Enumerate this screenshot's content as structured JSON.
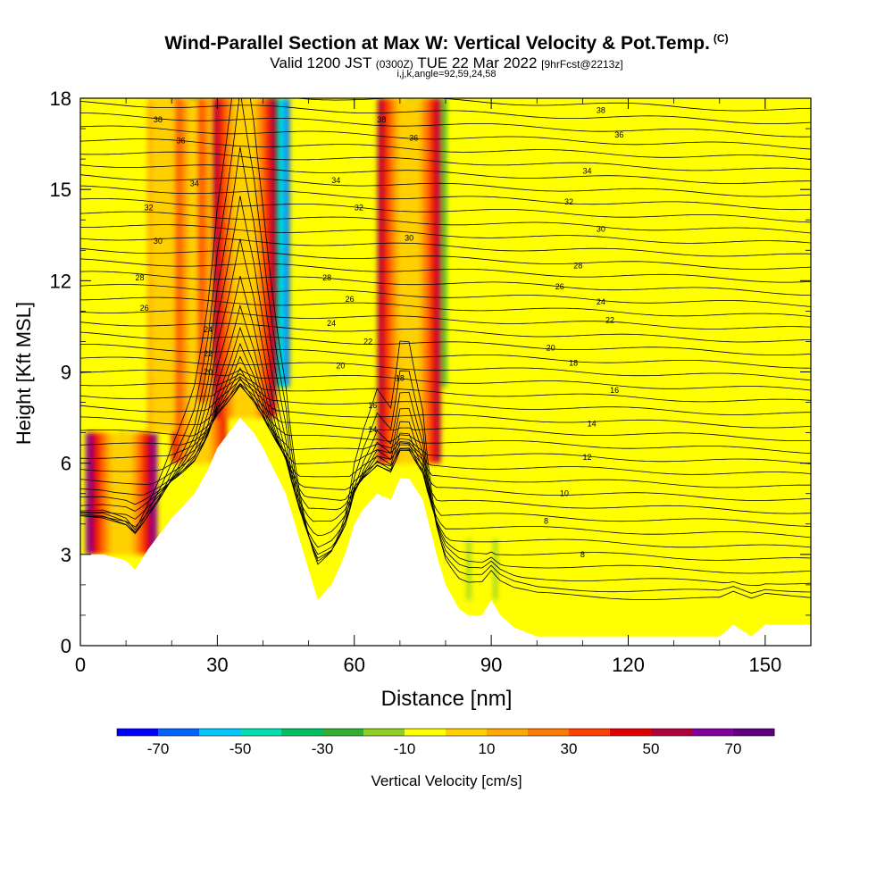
{
  "title": "Wind-Parallel Section at Max W: Vertical Velocity & Pot.Temp.",
  "copyright": "(C)",
  "subtitle_valid": "Valid 1200 JST",
  "subtitle_utc": "(0300Z)",
  "subtitle_date": "TUE 22 Mar 2022",
  "subtitle_fcst": "[9hrFcst@2213z]",
  "params": "i,j,k,angle=92,59,24,58",
  "colors": {
    "terrain": "#ffffff",
    "background": "#ffff00",
    "contour": "#000000"
  },
  "chart_data": {
    "type": "heatmap",
    "title": "Wind-Parallel Section at Max W: Vertical Velocity & Pot.Temp.",
    "xlabel": "Distance [nm]",
    "ylabel": "Height [Kft MSL]",
    "xlim": [
      0,
      160
    ],
    "ylim": [
      0,
      18
    ],
    "xticks": [
      0,
      30,
      60,
      90,
      120,
      150
    ],
    "yticks": [
      0,
      3,
      6,
      9,
      12,
      15,
      18
    ],
    "colorbar": {
      "label": "Vertical Velocity [cm/s]",
      "levels": [
        -80,
        -70,
        -60,
        -50,
        -40,
        -30,
        -20,
        -10,
        0,
        10,
        20,
        30,
        40,
        50,
        60,
        70,
        80
      ],
      "tick_labels": [
        "-70",
        "-50",
        "-30",
        "-10",
        "10",
        "30",
        "50",
        "70"
      ],
      "tick_values": [
        -70,
        -50,
        -30,
        -10,
        10,
        30,
        50,
        70
      ],
      "colors": [
        "#0000ff",
        "#0064ff",
        "#00c8ff",
        "#00e0b0",
        "#00c060",
        "#30b030",
        "#90d020",
        "#ffff00",
        "#ffd000",
        "#ffa800",
        "#ff7800",
        "#ff4000",
        "#e00000",
        "#b00040",
        "#8000a0",
        "#600080"
      ]
    },
    "terrain_profile": {
      "x": [
        0,
        5,
        10,
        12,
        15,
        20,
        25,
        28,
        30,
        35,
        38,
        40,
        45,
        50,
        52,
        55,
        58,
        60,
        62,
        65,
        68,
        70,
        72,
        75,
        78,
        80,
        83,
        85,
        88,
        90,
        92,
        95,
        100,
        110,
        120,
        130,
        140,
        143,
        147,
        150,
        160
      ],
      "y": [
        3.0,
        3.0,
        2.8,
        2.5,
        3.2,
        4.2,
        5.0,
        5.8,
        6.5,
        7.5,
        7.0,
        6.5,
        5.0,
        2.5,
        1.5,
        2.0,
        3.0,
        4.0,
        4.5,
        5.0,
        4.8,
        5.5,
        5.5,
        4.8,
        3.0,
        2.0,
        1.2,
        1.0,
        1.0,
        1.5,
        1.0,
        0.6,
        0.3,
        0.3,
        0.3,
        0.3,
        0.3,
        0.7,
        0.3,
        0.7,
        0.7
      ]
    },
    "updraft_zones": [
      {
        "x": 9,
        "bottom": 3.0,
        "top": 7.0,
        "w": 70
      },
      {
        "x": 26,
        "bottom": 6.0,
        "top": 18.0,
        "w": 50
      },
      {
        "x": 31,
        "bottom": 8.0,
        "top": 18.0,
        "w": 40
      },
      {
        "x": 36,
        "bottom": 7.5,
        "top": 18.0,
        "w": 60
      },
      {
        "x": 72,
        "bottom": 6.0,
        "top": 18.0,
        "w": 60
      },
      {
        "x": 18,
        "bottom": 7.0,
        "top": 18.0,
        "w": 20
      }
    ],
    "downdraft_zones": [
      {
        "x": 38,
        "bottom": 8.5,
        "top": 18.0,
        "w": -70
      },
      {
        "x": 29,
        "bottom": 10.5,
        "top": 18.0,
        "w": -40
      },
      {
        "x": 76,
        "bottom": 8.5,
        "top": 18.0,
        "w": -30
      },
      {
        "x": 12,
        "bottom": 3.5,
        "top": 7.0,
        "w": -20
      },
      {
        "x": 88,
        "bottom": 1.5,
        "top": 3.5,
        "w": -20
      },
      {
        "x": 125,
        "bottom": 0.5,
        "top": 4.0,
        "w": -10
      },
      {
        "x": 150,
        "bottom": 1.0,
        "top": 14.0,
        "w": -10
      }
    ],
    "theta_contour_labels": [
      {
        "value": "38",
        "x": 17,
        "y": 17.3
      },
      {
        "value": "38",
        "x": 66,
        "y": 17.3
      },
      {
        "value": "38",
        "x": 114,
        "y": 17.6
      },
      {
        "value": "36",
        "x": 22,
        "y": 16.6
      },
      {
        "value": "36",
        "x": 73,
        "y": 16.7
      },
      {
        "value": "36",
        "x": 118,
        "y": 16.8
      },
      {
        "value": "34",
        "x": 25,
        "y": 15.2
      },
      {
        "value": "34",
        "x": 56,
        "y": 15.3
      },
      {
        "value": "34",
        "x": 111,
        "y": 15.6
      },
      {
        "value": "32",
        "x": 15,
        "y": 14.4
      },
      {
        "value": "32",
        "x": 61,
        "y": 14.4
      },
      {
        "value": "32",
        "x": 107,
        "y": 14.6
      },
      {
        "value": "30",
        "x": 17,
        "y": 13.3
      },
      {
        "value": "30",
        "x": 72,
        "y": 13.4
      },
      {
        "value": "30",
        "x": 114,
        "y": 13.7
      },
      {
        "value": "28",
        "x": 13,
        "y": 12.1
      },
      {
        "value": "28",
        "x": 54,
        "y": 12.1
      },
      {
        "value": "28",
        "x": 109,
        "y": 12.5
      },
      {
        "value": "26",
        "x": 14,
        "y": 11.1
      },
      {
        "value": "26",
        "x": 59,
        "y": 11.4
      },
      {
        "value": "26",
        "x": 105,
        "y": 11.8
      },
      {
        "value": "24",
        "x": 28,
        "y": 10.4
      },
      {
        "value": "24",
        "x": 55,
        "y": 10.6
      },
      {
        "value": "24",
        "x": 114,
        "y": 11.3
      },
      {
        "value": "22",
        "x": 28,
        "y": 9.6
      },
      {
        "value": "22",
        "x": 63,
        "y": 10.0
      },
      {
        "value": "22",
        "x": 116,
        "y": 10.7
      },
      {
        "value": "20",
        "x": 28,
        "y": 9.0
      },
      {
        "value": "20",
        "x": 57,
        "y": 9.2
      },
      {
        "value": "20",
        "x": 103,
        "y": 9.8
      },
      {
        "value": "18",
        "x": 70,
        "y": 8.8
      },
      {
        "value": "18",
        "x": 108,
        "y": 9.3
      },
      {
        "value": "16",
        "x": 64,
        "y": 7.9
      },
      {
        "value": "16",
        "x": 117,
        "y": 8.4
      },
      {
        "value": "14",
        "x": 64,
        "y": 7.1
      },
      {
        "value": "14",
        "x": 112,
        "y": 7.3
      },
      {
        "value": "12",
        "x": 111,
        "y": 6.2
      },
      {
        "value": "10",
        "x": 106,
        "y": 5.0
      },
      {
        "value": "8",
        "x": 102,
        "y": 4.1
      },
      {
        "value": "8",
        "x": 110,
        "y": 3.0
      }
    ]
  }
}
